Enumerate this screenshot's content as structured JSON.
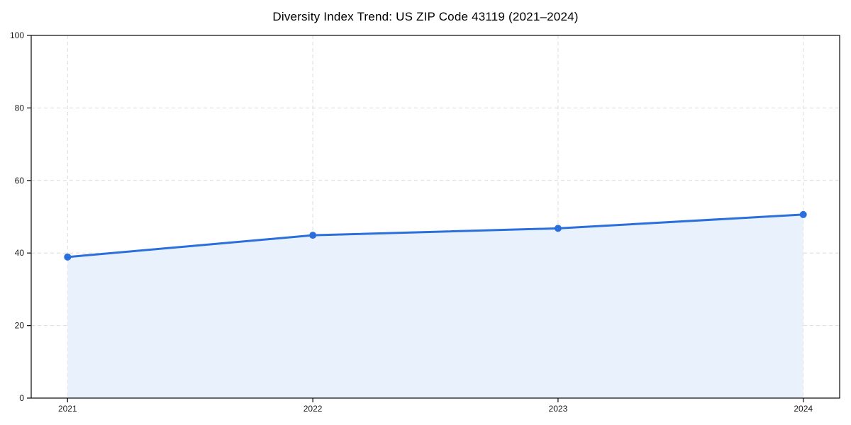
{
  "chart_data": {
    "type": "area",
    "title": "Diversity Index Trend: US ZIP Code 43119 (2021–2024)",
    "xlabel": "",
    "ylabel": "",
    "x": [
      "2021",
      "2022",
      "2023",
      "2024"
    ],
    "series": [
      {
        "name": "Diversity Index",
        "values": [
          38.9,
          44.9,
          46.8,
          50.6
        ]
      }
    ],
    "ylim": [
      0,
      100
    ],
    "yticks": [
      0,
      20,
      40,
      60,
      80,
      100
    ],
    "grid": true,
    "grid_style": "dashed",
    "legend_position": "none",
    "marker": "circle",
    "colors": {
      "line": "#2a6fdb",
      "marker": "#2a6fdb",
      "fill": "#e9f1fc",
      "grid": "#dcdcdc",
      "axis": "#1a1a1a",
      "tick_label": "#1a1a1a",
      "title": "#000000",
      "background": "#ffffff"
    }
  }
}
